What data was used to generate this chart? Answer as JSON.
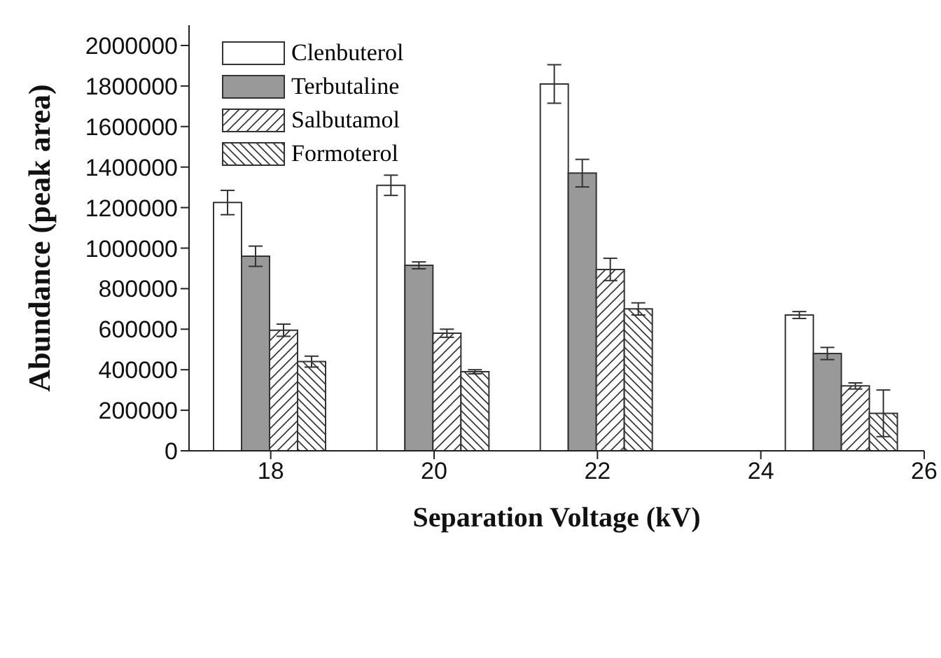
{
  "chart_data": {
    "type": "bar",
    "xlabel": "Separation Voltage (kV)",
    "ylabel": "Abundance (peak area)",
    "x": [
      18,
      20,
      22,
      25
    ],
    "series": [
      {
        "name": "Clenbuterol",
        "color": "#ffffff",
        "values": [
          1225000,
          1310000,
          1810000,
          670000
        ],
        "errors": [
          60000,
          50000,
          95000,
          17000
        ]
      },
      {
        "name": "Terbutaline",
        "color": "#999999",
        "values": [
          960000,
          915000,
          1370000,
          480000
        ],
        "errors": [
          50000,
          17000,
          68000,
          30000
        ]
      },
      {
        "name": "Salbutamol",
        "color": "#333333",
        "values": [
          595000,
          580000,
          895000,
          320000
        ],
        "errors": [
          30000,
          20000,
          55000,
          15000
        ]
      },
      {
        "name": "Formoterol",
        "color": "#333333",
        "values": [
          440000,
          390000,
          700000,
          185000
        ],
        "errors": [
          27000,
          10000,
          30000,
          115000
        ]
      }
    ],
    "xlim": [
      17,
      26
    ],
    "xticks": [
      18,
      20,
      22,
      24,
      26
    ],
    "ylim": [
      0,
      2100000
    ],
    "yticks": [
      0,
      200000,
      400000,
      600000,
      800000,
      1000000,
      1200000,
      1400000,
      1600000,
      1800000,
      2000000
    ],
    "legend": "top left",
    "grid": false
  }
}
